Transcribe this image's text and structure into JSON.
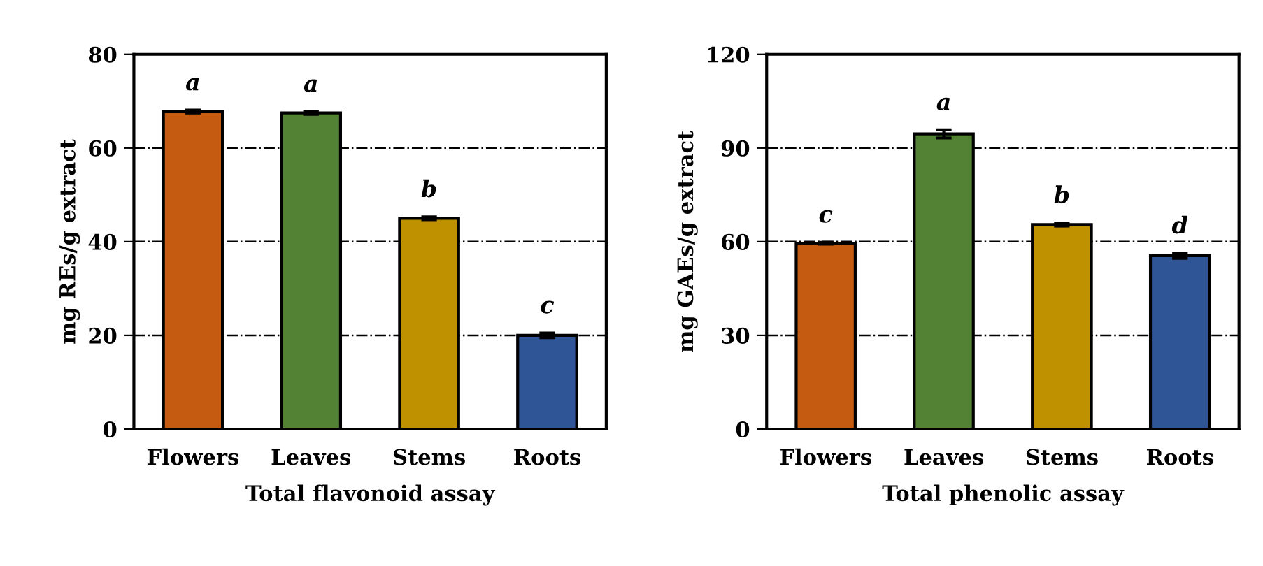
{
  "chart_data": [
    {
      "type": "bar",
      "xlabel": "Total flavonoid assay",
      "ylabel": "mg REs/g extract",
      "categories": [
        "Flowers",
        "Leaves",
        "Stems",
        "Roots"
      ],
      "values": [
        67.8,
        67.5,
        45.0,
        20.0
      ],
      "errors": [
        0.3,
        0.3,
        0.3,
        0.5
      ],
      "colors": [
        "#c55a11",
        "#548235",
        "#bf9000",
        "#2f5597"
      ],
      "ylim": [
        0,
        80
      ],
      "yticks": [
        0,
        20,
        40,
        60,
        80
      ],
      "grid": "y",
      "annotations": [
        {
          "text": "a",
          "x": "Flowers",
          "y": 67.8
        },
        {
          "text": "a",
          "x": "Leaves",
          "y": 67.5
        },
        {
          "text": "b",
          "x": "Stems",
          "y": 45.0
        },
        {
          "text": "c",
          "x": "Roots",
          "y": 20.0
        }
      ]
    },
    {
      "type": "bar",
      "xlabel": "Total phenolic assay",
      "ylabel": "mg GAEs/g extract",
      "categories": [
        "Flowers",
        "Leaves",
        "Stems",
        "Roots"
      ],
      "values": [
        59.5,
        94.5,
        65.5,
        55.5
      ],
      "errors": [
        0.3,
        1.3,
        0.5,
        0.8
      ],
      "colors": [
        "#c55a11",
        "#548235",
        "#bf9000",
        "#2f5597"
      ],
      "ylim": [
        0,
        120
      ],
      "yticks": [
        0,
        30,
        60,
        90,
        120
      ],
      "grid": "y",
      "annotations": [
        {
          "text": "c",
          "x": "Flowers",
          "y": 59.5
        },
        {
          "text": "a",
          "x": "Leaves",
          "y": 94.5
        },
        {
          "text": "b",
          "x": "Stems",
          "y": 65.5
        },
        {
          "text": "d",
          "x": "Roots",
          "y": 55.5
        }
      ]
    }
  ]
}
